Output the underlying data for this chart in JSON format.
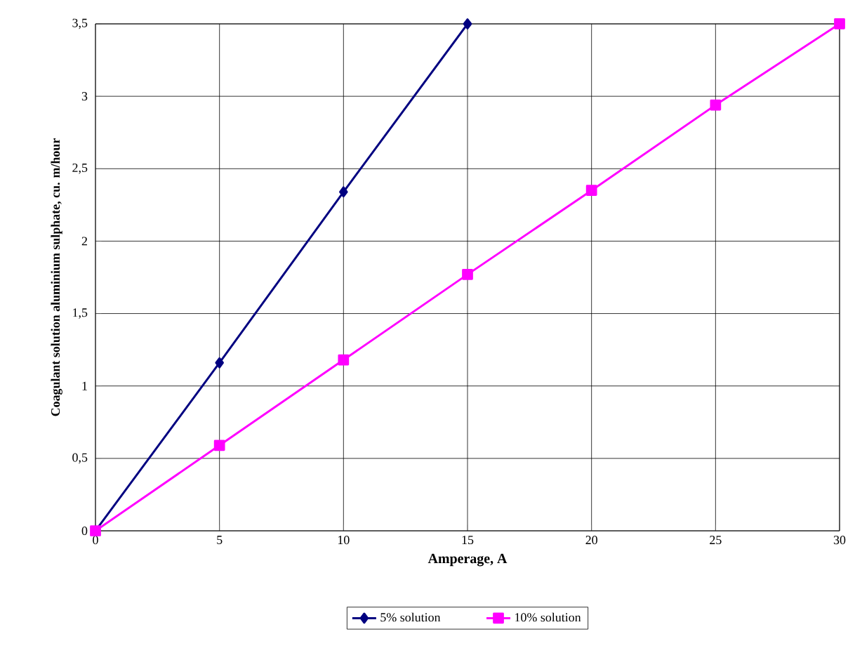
{
  "chart_data": {
    "type": "line",
    "xlabel": "Amperage, A",
    "ylabel": "Coagulant solution aluminium sulphate, cu. m/hour",
    "xlim": [
      0,
      30
    ],
    "xticks": [
      0,
      5,
      10,
      15,
      20,
      25,
      30
    ],
    "ylim": [
      0,
      3.5
    ],
    "yticks": [
      0,
      {
        "value": 0.5,
        "label": "0,5"
      },
      1,
      {
        "value": 1.5,
        "label": "1,5"
      },
      2,
      {
        "value": 2.5,
        "label": "2,5"
      },
      3,
      {
        "value": 3.5,
        "label": "3,5"
      }
    ],
    "grid": true,
    "legend": "bottom",
    "line_style": "solid",
    "series": [
      {
        "name": "5% solution",
        "color": "#000080",
        "marker": "diamond",
        "x": [
          0,
          5,
          10,
          15
        ],
        "values": [
          0,
          1.16,
          2.34,
          3.5
        ]
      },
      {
        "name": "10% solution",
        "color": "#ff00ff",
        "marker": "square",
        "x": [
          0,
          5,
          10,
          15,
          20,
          25,
          30
        ],
        "values": [
          0,
          0.59,
          1.18,
          1.77,
          2.35,
          2.94,
          3.5
        ]
      }
    ]
  }
}
